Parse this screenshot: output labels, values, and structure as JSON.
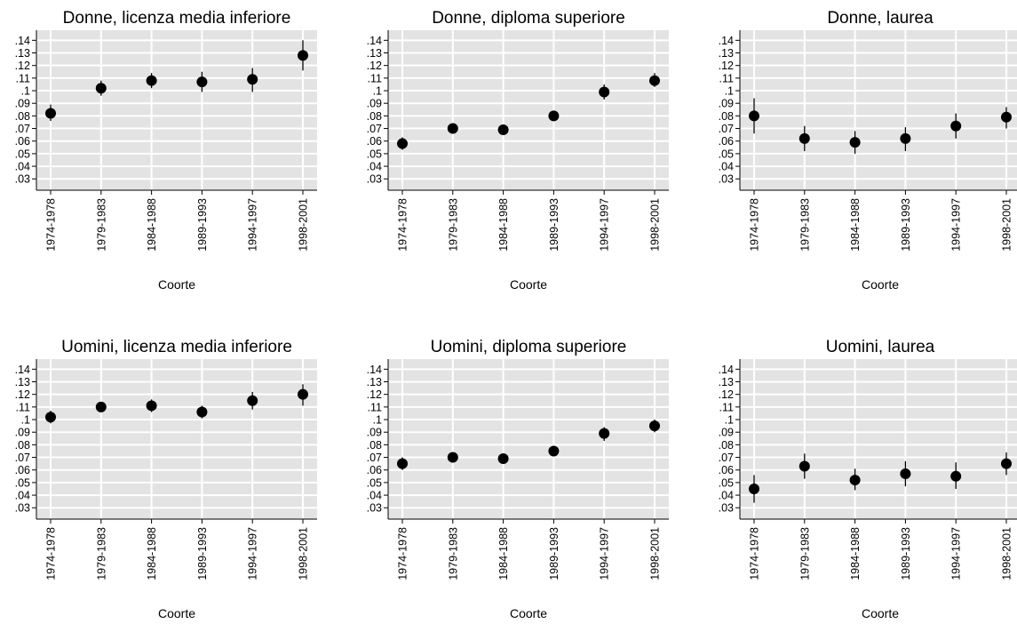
{
  "chart_data": [
    {
      "type": "scatter",
      "title": "Donne, licenza media inferiore",
      "xlabel": "Coorte",
      "ylabel": "",
      "categories": [
        "1974-1978",
        "1979-1983",
        "1984-1988",
        "1989-1993",
        "1994-1997",
        "1998-2001"
      ],
      "values": [
        0.082,
        0.102,
        0.108,
        0.107,
        0.109,
        0.128
      ],
      "ci_low": [
        0.076,
        0.096,
        0.102,
        0.099,
        0.099,
        0.116
      ],
      "ci_high": [
        0.089,
        0.108,
        0.114,
        0.115,
        0.118,
        0.14
      ],
      "yticks": [
        ".03",
        ".04",
        ".05",
        ".06",
        ".07",
        ".08",
        ".09",
        ".1",
        ".11",
        ".12",
        ".13",
        ".14"
      ],
      "ylim": [
        0.021,
        0.148
      ],
      "grid": true
    },
    {
      "type": "scatter",
      "title": "Donne, diploma superiore",
      "xlabel": "Coorte",
      "ylabel": "",
      "categories": [
        "1974-1978",
        "1979-1983",
        "1984-1988",
        "1989-1993",
        "1994-1997",
        "1998-2001"
      ],
      "values": [
        0.058,
        0.07,
        0.069,
        0.08,
        0.099,
        0.108
      ],
      "ci_low": [
        0.053,
        0.066,
        0.065,
        0.076,
        0.093,
        0.103
      ],
      "ci_high": [
        0.063,
        0.074,
        0.073,
        0.084,
        0.105,
        0.114
      ],
      "yticks": [
        ".03",
        ".04",
        ".05",
        ".06",
        ".07",
        ".08",
        ".09",
        ".1",
        ".11",
        ".12",
        ".13",
        ".14"
      ],
      "ylim": [
        0.021,
        0.148
      ],
      "grid": true
    },
    {
      "type": "scatter",
      "title": "Donne, laurea",
      "xlabel": "Coorte",
      "ylabel": "",
      "categories": [
        "1974-1978",
        "1979-1983",
        "1984-1988",
        "1989-1993",
        "1994-1997",
        "1998-2001"
      ],
      "values": [
        0.08,
        0.062,
        0.059,
        0.062,
        0.072,
        0.079
      ],
      "ci_low": [
        0.066,
        0.052,
        0.05,
        0.052,
        0.062,
        0.07
      ],
      "ci_high": [
        0.094,
        0.072,
        0.068,
        0.071,
        0.082,
        0.087
      ],
      "yticks": [
        ".03",
        ".04",
        ".05",
        ".06",
        ".07",
        ".08",
        ".09",
        ".1",
        ".11",
        ".12",
        ".13",
        ".14"
      ],
      "ylim": [
        0.021,
        0.148
      ],
      "grid": true
    },
    {
      "type": "scatter",
      "title": "Uomini, licenza media inferiore",
      "xlabel": "Coorte",
      "ylabel": "",
      "categories": [
        "1974-1978",
        "1979-1983",
        "1984-1988",
        "1989-1993",
        "1994-1997",
        "1998-2001"
      ],
      "values": [
        0.102,
        0.11,
        0.111,
        0.106,
        0.115,
        0.12
      ],
      "ci_low": [
        0.097,
        0.106,
        0.106,
        0.101,
        0.108,
        0.111
      ],
      "ci_high": [
        0.107,
        0.114,
        0.116,
        0.111,
        0.122,
        0.128
      ],
      "yticks": [
        ".03",
        ".04",
        ".05",
        ".06",
        ".07",
        ".08",
        ".09",
        ".1",
        ".11",
        ".12",
        ".13",
        ".14"
      ],
      "ylim": [
        0.021,
        0.148
      ],
      "grid": true
    },
    {
      "type": "scatter",
      "title": "Uomini, diploma superiore",
      "xlabel": "Coorte",
      "ylabel": "",
      "categories": [
        "1974-1978",
        "1979-1983",
        "1984-1988",
        "1989-1993",
        "1994-1997",
        "1998-2001"
      ],
      "values": [
        0.065,
        0.07,
        0.069,
        0.075,
        0.089,
        0.095
      ],
      "ci_low": [
        0.06,
        0.066,
        0.065,
        0.071,
        0.083,
        0.09
      ],
      "ci_high": [
        0.07,
        0.074,
        0.073,
        0.079,
        0.094,
        0.1
      ],
      "yticks": [
        ".03",
        ".04",
        ".05",
        ".06",
        ".07",
        ".08",
        ".09",
        ".1",
        ".11",
        ".12",
        ".13",
        ".14"
      ],
      "ylim": [
        0.021,
        0.148
      ],
      "grid": true
    },
    {
      "type": "scatter",
      "title": "Uomini, laurea",
      "xlabel": "Coorte",
      "ylabel": "",
      "categories": [
        "1974-1978",
        "1979-1983",
        "1984-1988",
        "1989-1993",
        "1994-1997",
        "1998-2001"
      ],
      "values": [
        0.045,
        0.063,
        0.052,
        0.057,
        0.055,
        0.065
      ],
      "ci_low": [
        0.034,
        0.053,
        0.044,
        0.047,
        0.045,
        0.056
      ],
      "ci_high": [
        0.056,
        0.073,
        0.061,
        0.067,
        0.066,
        0.074
      ],
      "yticks": [
        ".03",
        ".04",
        ".05",
        ".06",
        ".07",
        ".08",
        ".09",
        ".1",
        ".11",
        ".12",
        ".13",
        ".14"
      ],
      "ylim": [
        0.021,
        0.148
      ],
      "grid": true
    }
  ]
}
